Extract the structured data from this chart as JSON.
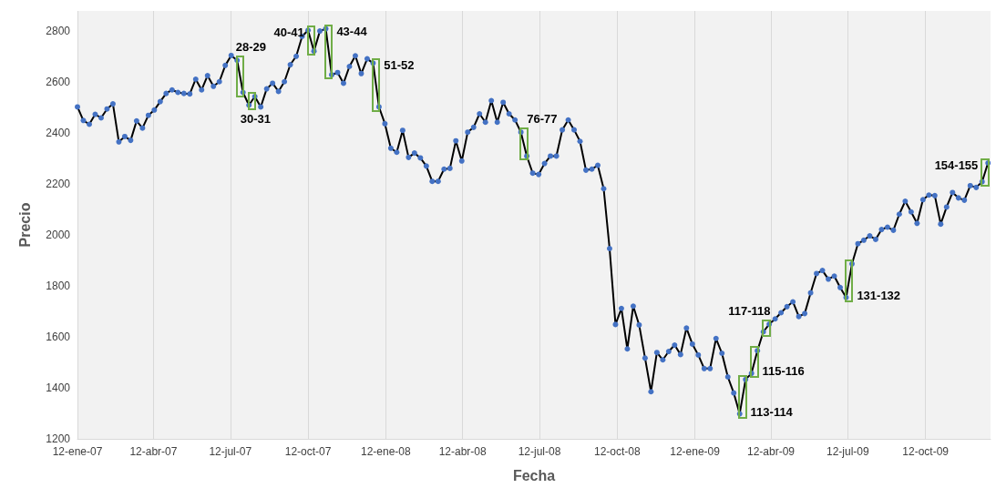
{
  "chart_data": {
    "type": "line",
    "xlabel": "Fecha",
    "ylabel": "Precio",
    "x": [
      "2007-01-12",
      "2007-01-19",
      "2007-01-26",
      "2007-02-02",
      "2007-02-09",
      "2007-02-16",
      "2007-02-23",
      "2007-03-02",
      "2007-03-09",
      "2007-03-16",
      "2007-03-23",
      "2007-03-30",
      "2007-04-06",
      "2007-04-13",
      "2007-04-20",
      "2007-04-27",
      "2007-05-04",
      "2007-05-11",
      "2007-05-18",
      "2007-05-25",
      "2007-06-01",
      "2007-06-08",
      "2007-06-15",
      "2007-06-22",
      "2007-06-29",
      "2007-07-06",
      "2007-07-13",
      "2007-07-20",
      "2007-07-27",
      "2007-08-03",
      "2007-08-10",
      "2007-08-17",
      "2007-08-24",
      "2007-08-31",
      "2007-09-07",
      "2007-09-14",
      "2007-09-21",
      "2007-09-28",
      "2007-10-05",
      "2007-10-12",
      "2007-10-19",
      "2007-10-26",
      "2007-11-02",
      "2007-11-09",
      "2007-11-16",
      "2007-11-23",
      "2007-11-30",
      "2007-12-07",
      "2007-12-14",
      "2007-12-21",
      "2007-12-28",
      "2008-01-04",
      "2008-01-11",
      "2008-01-18",
      "2008-01-25",
      "2008-02-01",
      "2008-02-08",
      "2008-02-15",
      "2008-02-22",
      "2008-02-29",
      "2008-03-07",
      "2008-03-14",
      "2008-03-21",
      "2008-03-28",
      "2008-04-04",
      "2008-04-11",
      "2008-04-18",
      "2008-04-25",
      "2008-05-02",
      "2008-05-09",
      "2008-05-16",
      "2008-05-23",
      "2008-05-30",
      "2008-06-06",
      "2008-06-13",
      "2008-06-20",
      "2008-06-27",
      "2008-07-04",
      "2008-07-11",
      "2008-07-18",
      "2008-07-25",
      "2008-08-01",
      "2008-08-08",
      "2008-08-15",
      "2008-08-22",
      "2008-08-29",
      "2008-09-05",
      "2008-09-12",
      "2008-09-19",
      "2008-09-26",
      "2008-10-03",
      "2008-10-10",
      "2008-10-17",
      "2008-10-24",
      "2008-10-31",
      "2008-11-07",
      "2008-11-14",
      "2008-11-21",
      "2008-11-28",
      "2008-12-05",
      "2008-12-12",
      "2008-12-19",
      "2008-12-26",
      "2009-01-02",
      "2009-01-09",
      "2009-01-16",
      "2009-01-23",
      "2009-01-30",
      "2009-02-06",
      "2009-02-13",
      "2009-02-20",
      "2009-02-27",
      "2009-03-06",
      "2009-03-13",
      "2009-03-20",
      "2009-03-27",
      "2009-04-03",
      "2009-04-10",
      "2009-04-17",
      "2009-04-24",
      "2009-05-01",
      "2009-05-08",
      "2009-05-15",
      "2009-05-22",
      "2009-05-29",
      "2009-06-05",
      "2009-06-12",
      "2009-06-19",
      "2009-06-26",
      "2009-07-03",
      "2009-07-10",
      "2009-07-17",
      "2009-07-24",
      "2009-07-31",
      "2009-08-07",
      "2009-08-14",
      "2009-08-21",
      "2009-08-28",
      "2009-09-04",
      "2009-09-11",
      "2009-09-18",
      "2009-09-25",
      "2009-10-02",
      "2009-10-09",
      "2009-10-16",
      "2009-10-23",
      "2009-10-30",
      "2009-11-06",
      "2009-11-13",
      "2009-11-20",
      "2009-11-27",
      "2009-12-04",
      "2009-12-11",
      "2009-12-18",
      "2009-12-25"
    ],
    "series": [
      {
        "color": "#000000",
        "values": [
          2503,
          2450,
          2435,
          2474,
          2460,
          2495,
          2515,
          2366,
          2387,
          2372,
          2448,
          2420,
          2470,
          2491,
          2524,
          2556,
          2570,
          2560,
          2556,
          2554,
          2612,
          2570,
          2626,
          2584,
          2602,
          2666,
          2705,
          2686,
          2560,
          2510,
          2544,
          2503,
          2574,
          2596,
          2564,
          2602,
          2669,
          2702,
          2780,
          2804,
          2722,
          2801,
          2810,
          2629,
          2638,
          2596,
          2662,
          2704,
          2634,
          2692,
          2675,
          2503,
          2437,
          2341,
          2325,
          2411,
          2305,
          2322,
          2303,
          2271,
          2211,
          2211,
          2259,
          2262,
          2370,
          2291,
          2404,
          2423,
          2476,
          2443,
          2528,
          2443,
          2521,
          2476,
          2452,
          2404,
          2310,
          2243,
          2238,
          2281,
          2310,
          2310,
          2413,
          2452,
          2413,
          2368,
          2255,
          2259,
          2274,
          2182,
          1947,
          1649,
          1712,
          1553,
          1721,
          1647,
          1517,
          1385,
          1539,
          1510,
          1543,
          1568,
          1531,
          1635,
          1572,
          1529,
          1476,
          1476,
          1594,
          1536,
          1443,
          1380,
          1298,
          1433,
          1457,
          1546,
          1620,
          1650,
          1671,
          1695,
          1719,
          1738,
          1680,
          1692,
          1773,
          1849,
          1861,
          1827,
          1839,
          1794,
          1755,
          1887,
          1966,
          1980,
          1997,
          1983,
          2022,
          2031,
          2019,
          2082,
          2133,
          2091,
          2046,
          2139,
          2157,
          2155,
          2043,
          2110,
          2167,
          2146,
          2137,
          2194,
          2187,
          2209,
          2283
        ]
      }
    ],
    "marker": "circle",
    "line_style": "solid",
    "grid": "x",
    "xlim": [
      "2007-01-12",
      "2009-12-28"
    ],
    "ylim": [
      1200,
      2880
    ],
    "xticks": [
      {
        "value": "2007-01-12",
        "label": "12-ene-07"
      },
      {
        "value": "2007-04-12",
        "label": "12-abr-07"
      },
      {
        "value": "2007-07-12",
        "label": "12-jul-07"
      },
      {
        "value": "2007-10-12",
        "label": "12-oct-07"
      },
      {
        "value": "2008-01-12",
        "label": "12-ene-08"
      },
      {
        "value": "2008-04-12",
        "label": "12-abr-08"
      },
      {
        "value": "2008-07-12",
        "label": "12-jul-08"
      },
      {
        "value": "2008-10-12",
        "label": "12-oct-08"
      },
      {
        "value": "2009-01-12",
        "label": "12-ene-09"
      },
      {
        "value": "2009-04-12",
        "label": "12-abr-09"
      },
      {
        "value": "2009-07-12",
        "label": "12-jul-09"
      },
      {
        "value": "2009-10-12",
        "label": "12-oct-09"
      }
    ],
    "yticks": [
      1200,
      1400,
      1600,
      1800,
      2000,
      2200,
      2400,
      2600,
      2800
    ],
    "annotations": [
      {
        "text": "28-29",
        "x": "2007-07-20",
        "y": 2686
      },
      {
        "text": "30-31",
        "x": "2007-08-03",
        "y": 2510
      },
      {
        "text": "40-41",
        "x": "2007-10-12",
        "y": 2804
      },
      {
        "text": "43-44",
        "x": "2007-11-02",
        "y": 2810
      },
      {
        "text": "51-52",
        "x": "2007-12-28",
        "y": 2675
      },
      {
        "text": "76-77",
        "x": "2008-06-20",
        "y": 2404
      },
      {
        "text": "113-114",
        "x": "2009-03-06",
        "y": 1298
      },
      {
        "text": "115-116",
        "x": "2009-03-20",
        "y": 1457
      },
      {
        "text": "117-118",
        "x": "2009-04-03",
        "y": 1620
      },
      {
        "text": "131-132",
        "x": "2009-07-10",
        "y": 1755
      },
      {
        "text": "154-155",
        "x": "2009-12-18",
        "y": 2209
      }
    ]
  }
}
